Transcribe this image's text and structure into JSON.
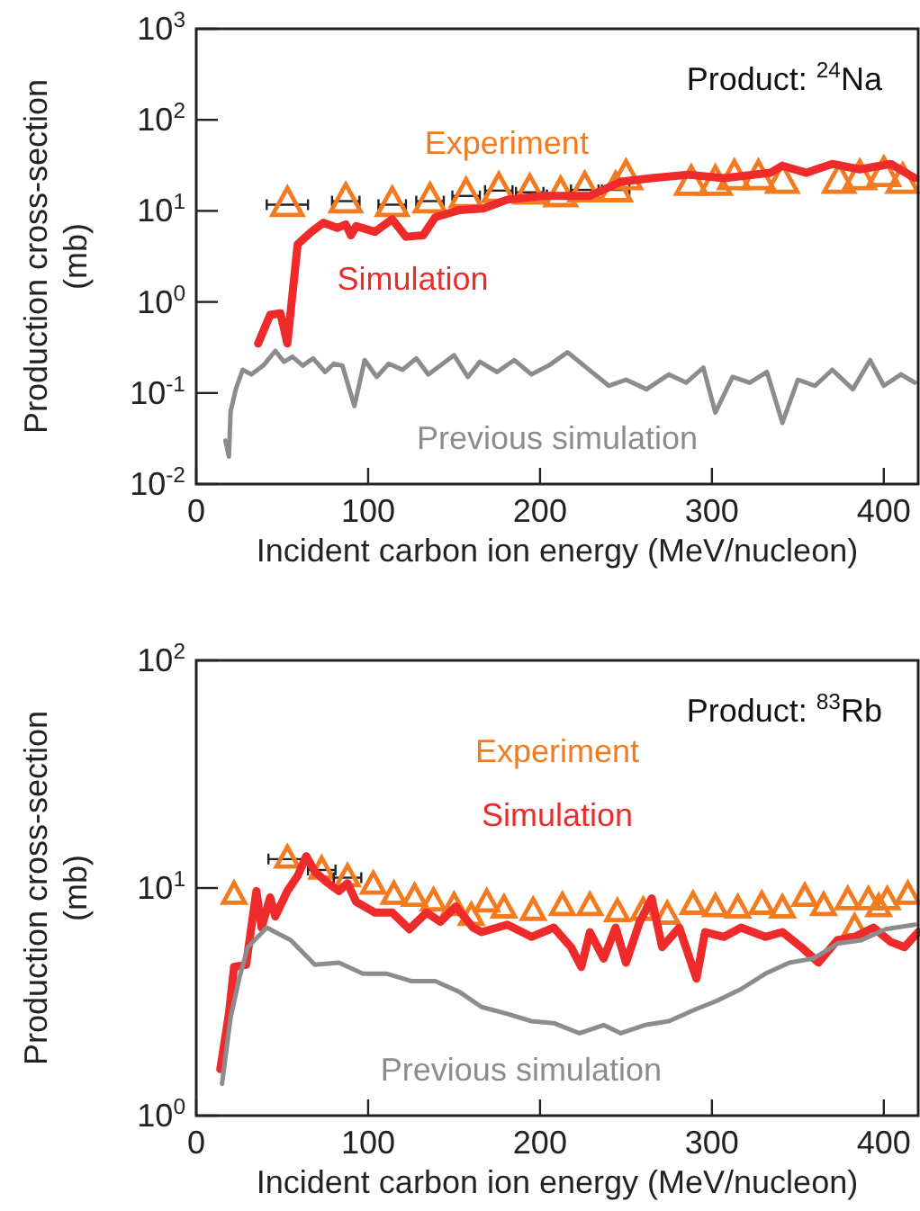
{
  "chart_data": [
    {
      "type": "line",
      "log": "y",
      "xlim": [
        0,
        420
      ],
      "xticks": [
        0,
        100,
        200,
        300,
        400
      ],
      "ylim": [
        0.01,
        1000
      ],
      "yticks": [
        {
          "value": 0.01,
          "label": "10$^{-2}$"
        },
        {
          "value": 0.1,
          "label": "10$^{-1}$"
        },
        {
          "value": 1,
          "label": "10$^{0}$"
        },
        {
          "value": 10,
          "label": "10$^{1}$"
        },
        {
          "value": 100,
          "label": "10$^{2}$"
        },
        {
          "value": 1000,
          "label": "10$^{3}$"
        }
      ],
      "xlabel": "Incident carbon ion energy (MeV/nucleon)",
      "ylabel": "Production cross-section (mb)",
      "annotations": [
        "Product: $^{24}$Na"
      ],
      "series": [
        {
          "name": "Experiment",
          "type": "scatter",
          "marker": "triangle",
          "color": "#f47a20",
          "x": [
            53,
            87,
            114,
            136,
            157,
            176,
            194,
            212,
            226,
            244,
            250,
            288,
            302,
            313,
            327,
            341,
            374,
            386,
            400,
            411
          ],
          "values": [
            11.7,
            12.8,
            11.7,
            12.8,
            14.6,
            16.7,
            16,
            15,
            17,
            17,
            23,
            20,
            20,
            23,
            23,
            21,
            21,
            23,
            25,
            21
          ],
          "xerrors": [
            12,
            8,
            8,
            8,
            8,
            8,
            8,
            8,
            8,
            8,
            null,
            null,
            null,
            null,
            null,
            null,
            null,
            null,
            null,
            null
          ]
        },
        {
          "name": "Simulation",
          "type": "line",
          "color": "#ee2a2a",
          "x": [
            36,
            43,
            49,
            53,
            59,
            67,
            74,
            82,
            87,
            90,
            93,
            104,
            114,
            122,
            132,
            139,
            153,
            167,
            181,
            202,
            229,
            247,
            265,
            286,
            307,
            334,
            341,
            355,
            370,
            386,
            404,
            418
          ],
          "values": [
            0.35,
            0.72,
            0.75,
            0.35,
            4.3,
            5.9,
            7.4,
            6.5,
            7.1,
            5.4,
            6.8,
            5.9,
            8.1,
            5.2,
            5.4,
            8.5,
            10.2,
            10.6,
            13.3,
            14.6,
            14.6,
            20.9,
            22.9,
            25,
            22.9,
            26.2,
            31.3,
            26.2,
            32.8,
            28.6,
            32.8,
            22.9
          ]
        },
        {
          "name": "Previous simulation",
          "type": "line",
          "color": "#8c8c8c",
          "x": [
            17,
            19,
            20,
            23,
            27,
            32,
            39,
            46,
            51,
            56,
            62,
            68,
            75,
            80,
            85,
            92,
            98,
            105,
            112,
            120,
            128,
            135,
            142,
            150,
            158,
            165,
            175,
            185,
            195,
            205,
            216,
            227,
            240,
            250,
            262,
            275,
            285,
            295,
            302,
            312,
            322,
            332,
            341,
            350,
            360,
            370,
            382,
            392,
            400,
            410,
            418
          ],
          "values": [
            0.03,
            0.02,
            0.063,
            0.11,
            0.18,
            0.16,
            0.2,
            0.29,
            0.22,
            0.25,
            0.2,
            0.24,
            0.17,
            0.21,
            0.2,
            0.072,
            0.23,
            0.15,
            0.21,
            0.18,
            0.24,
            0.16,
            0.2,
            0.26,
            0.15,
            0.22,
            0.17,
            0.23,
            0.16,
            0.2,
            0.28,
            0.19,
            0.12,
            0.14,
            0.11,
            0.16,
            0.13,
            0.19,
            0.061,
            0.15,
            0.13,
            0.17,
            0.047,
            0.14,
            0.12,
            0.18,
            0.11,
            0.23,
            0.12,
            0.16,
            0.13
          ]
        }
      ]
    },
    {
      "type": "line",
      "log": "y",
      "xlim": [
        0,
        420
      ],
      "xticks": [
        0,
        100,
        200,
        300,
        400
      ],
      "ylim": [
        1,
        100
      ],
      "yticks": [
        {
          "value": 1,
          "label": "10$^{0}$"
        },
        {
          "value": 10,
          "label": "10$^{1}$"
        },
        {
          "value": 100,
          "label": "10$^{2}$"
        }
      ],
      "xlabel": "Incident carbon ion energy (MeV/nucleon)",
      "ylabel": "Production cross-section (mb)",
      "annotations": [
        "Product: $^{83}$Rb"
      ],
      "series": [
        {
          "name": "Experiment",
          "type": "scatter",
          "marker": "triangle",
          "color": "#f47a20",
          "x": [
            22,
            53,
            73,
            88,
            103,
            115,
            127,
            138,
            150,
            160,
            169,
            179,
            196,
            213,
            229,
            245,
            260,
            274,
            289,
            302,
            315,
            329,
            341,
            354,
            365,
            379,
            383,
            391,
            397,
            402,
            414
          ],
          "values": [
            9.3,
            13.4,
            12,
            11.1,
            10.3,
            9.3,
            9.1,
            8.7,
            8.3,
            7.5,
            8.6,
            8.1,
            7.9,
            8.3,
            8.3,
            7.8,
            7.9,
            7.6,
            8.4,
            8.2,
            8.1,
            8.4,
            8.1,
            9.1,
            8.3,
            8.8,
            6.7,
            8.8,
            8.2,
            8.8,
            9.3
          ],
          "xerrors": [
            null,
            11,
            8,
            8,
            null,
            null,
            null,
            null,
            null,
            null,
            null,
            null,
            null,
            null,
            null,
            null,
            null,
            null,
            null,
            null,
            null,
            null,
            null,
            null,
            null,
            null,
            null,
            null,
            null,
            null,
            null
          ]
        },
        {
          "name": "Simulation",
          "type": "line",
          "color": "#ee2a2a",
          "x": [
            14,
            19,
            22,
            29,
            35,
            38,
            43,
            46,
            53,
            59,
            64,
            69,
            76,
            83,
            88,
            93,
            104,
            114,
            124,
            134,
            142,
            151,
            161,
            166,
            181,
            195,
            208,
            218,
            224,
            229,
            237,
            244,
            250,
            258,
            265,
            271,
            281,
            291,
            296,
            307,
            317,
            331,
            341,
            352,
            362,
            373,
            383,
            394,
            404,
            412,
            420
          ],
          "values": [
            1.6,
            2.8,
            4.5,
            4.6,
            9.7,
            6.7,
            9.1,
            7.5,
            9.7,
            11.3,
            13.8,
            11.8,
            10.6,
            9.7,
            10.5,
            8.7,
            7.8,
            7.8,
            6.6,
            7.8,
            7.1,
            8.3,
            6.7,
            6.4,
            6.9,
            6.1,
            6.7,
            5.5,
            4.5,
            6.4,
            4.9,
            6.7,
            4.7,
            7.1,
            9.0,
            5.5,
            6.7,
            4.0,
            6.4,
            6.1,
            6.7,
            6.1,
            6.4,
            5.5,
            4.7,
            5.9,
            6.1,
            6.7,
            5.8,
            5.5,
            6.4
          ]
        },
        {
          "name": "Previous simulation",
          "type": "line",
          "color": "#8c8c8c",
          "x": [
            15,
            20,
            25,
            30,
            41,
            46,
            55,
            69,
            83,
            97,
            111,
            125,
            139,
            153,
            166,
            181,
            195,
            208,
            223,
            237,
            247,
            261,
            275,
            289,
            303,
            317,
            331,
            345,
            359,
            373,
            387,
            401,
            418
          ],
          "values": [
            1.38,
            2.7,
            4.0,
            5.5,
            6.7,
            6.4,
            5.9,
            4.6,
            4.7,
            4.2,
            4.2,
            3.9,
            3.9,
            3.5,
            3.0,
            2.8,
            2.6,
            2.55,
            2.3,
            2.5,
            2.3,
            2.5,
            2.6,
            2.9,
            3.2,
            3.6,
            4.2,
            4.7,
            4.9,
            5.7,
            5.9,
            6.6,
            6.9
          ]
        }
      ]
    }
  ]
}
